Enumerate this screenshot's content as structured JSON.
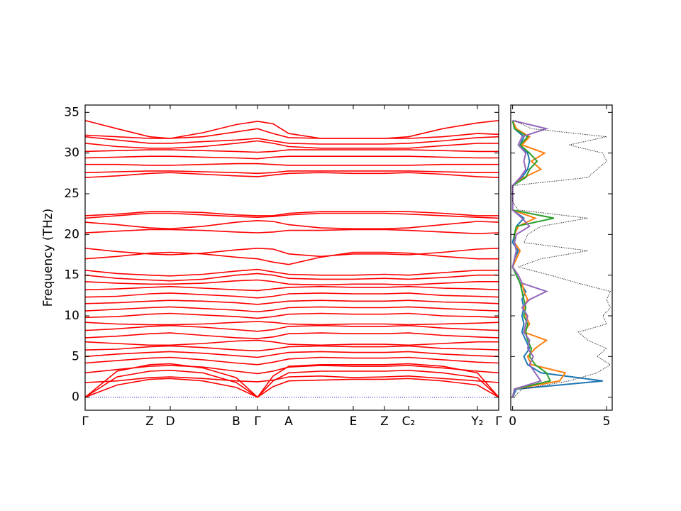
{
  "chart_data": [
    {
      "type": "bands",
      "ylabel": "Frequency (THz)",
      "color": "#ff0000",
      "reference_line": 0,
      "reference_color": "#0000cc",
      "xlim": [
        0,
        583
      ],
      "ylim": [
        -1.6,
        35.9
      ],
      "yticks": [
        0,
        5,
        10,
        15,
        20,
        25,
        30,
        35
      ],
      "xticks": [
        {
          "value": 0,
          "label": "Γ"
        },
        {
          "value": 91,
          "label": "Z"
        },
        {
          "value": 120,
          "label": "D"
        },
        {
          "value": 213,
          "label": "B"
        },
        {
          "value": 243,
          "label": "Γ"
        },
        {
          "value": 287,
          "label": "A"
        },
        {
          "value": 378,
          "label": "E"
        },
        {
          "value": 422,
          "label": "Z"
        },
        {
          "value": 456,
          "label": "C₂"
        },
        {
          "value": 553,
          "label": "Y₂"
        },
        {
          "value": 583,
          "label": "Γ"
        }
      ],
      "x": [
        0,
        45,
        91,
        120,
        166,
        213,
        243,
        265,
        287,
        332,
        378,
        422,
        456,
        504,
        553,
        583
      ],
      "series": [
        {
          "values": [
            0,
            1.5,
            2.2,
            2.3,
            2.0,
            1.2,
            0,
            1.3,
            2.0,
            2.1,
            2.2,
            2.2,
            2.3,
            2.0,
            1.5,
            0
          ]
        },
        {
          "values": [
            0,
            2.5,
            3.2,
            3.3,
            3.0,
            1.8,
            0,
            2.0,
            3.0,
            3.2,
            3.2,
            3.2,
            3.3,
            3.0,
            2.4,
            0
          ]
        },
        {
          "values": [
            0,
            3.2,
            4.0,
            4.1,
            3.6,
            2.4,
            0,
            2.6,
            3.8,
            4.0,
            4.0,
            4.0,
            4.1,
            3.8,
            3.0,
            0
          ]
        },
        {
          "values": [
            1.8,
            2.0,
            2.4,
            2.5,
            2.3,
            2.0,
            1.9,
            2.1,
            2.5,
            2.6,
            2.4,
            2.5,
            2.6,
            2.3,
            2.0,
            1.8
          ]
        },
        {
          "values": [
            3.0,
            3.4,
            3.8,
            3.9,
            3.7,
            3.2,
            2.9,
            3.2,
            3.7,
            3.9,
            3.8,
            3.8,
            3.9,
            3.6,
            3.2,
            3.0
          ]
        },
        {
          "values": [
            4.2,
            4.5,
            4.8,
            4.9,
            4.6,
            4.2,
            4.0,
            4.3,
            4.7,
            4.9,
            4.8,
            4.8,
            4.9,
            4.6,
            4.3,
            4.2
          ]
        },
        {
          "values": [
            5.0,
            5.3,
            5.5,
            5.6,
            5.4,
            5.1,
            4.9,
            5.2,
            5.5,
            5.6,
            5.5,
            5.5,
            5.6,
            5.3,
            5.1,
            5.0
          ]
        },
        {
          "values": [
            5.8,
            5.9,
            6.2,
            6.3,
            6.1,
            5.8,
            5.7,
            5.9,
            6.2,
            6.3,
            6.2,
            6.2,
            6.3,
            6.0,
            5.9,
            5.8
          ]
        },
        {
          "values": [
            6.8,
            6.6,
            6.4,
            6.4,
            6.6,
            6.9,
            7.0,
            6.8,
            6.5,
            6.4,
            6.5,
            6.5,
            6.4,
            6.6,
            6.8,
            6.8
          ]
        },
        {
          "values": [
            7.3,
            7.5,
            7.8,
            7.9,
            7.6,
            7.3,
            7.2,
            7.4,
            7.8,
            7.9,
            7.8,
            7.8,
            7.9,
            7.6,
            7.4,
            7.3
          ]
        },
        {
          "values": [
            8.2,
            8.4,
            8.7,
            8.8,
            8.6,
            8.3,
            8.1,
            8.3,
            8.7,
            8.8,
            8.7,
            8.7,
            8.8,
            8.5,
            8.3,
            8.2
          ]
        },
        {
          "values": [
            9.2,
            9.0,
            8.9,
            8.9,
            9.0,
            9.2,
            9.3,
            9.2,
            9.0,
            8.9,
            9.0,
            9.0,
            8.9,
            9.0,
            9.1,
            9.2
          ]
        },
        {
          "values": [
            9.8,
            9.9,
            10.2,
            10.3,
            10.1,
            9.9,
            9.7,
            9.9,
            10.2,
            10.3,
            10.2,
            10.2,
            10.3,
            10.0,
            9.9,
            9.8
          ]
        },
        {
          "values": [
            10.6,
            10.8,
            11.0,
            11.1,
            10.9,
            10.7,
            10.5,
            10.7,
            11.0,
            11.1,
            11.0,
            11.0,
            11.1,
            10.9,
            10.7,
            10.6
          ]
        },
        {
          "values": [
            11.5,
            11.6,
            11.8,
            11.9,
            11.8,
            11.6,
            11.4,
            11.6,
            11.8,
            11.9,
            11.8,
            11.8,
            11.9,
            11.7,
            11.6,
            11.5
          ]
        },
        {
          "values": [
            12.3,
            12.4,
            12.7,
            12.8,
            12.6,
            12.4,
            12.2,
            12.4,
            12.7,
            12.8,
            12.7,
            12.7,
            12.8,
            12.5,
            12.4,
            12.3
          ]
        },
        {
          "values": [
            13.2,
            13.3,
            13.5,
            13.6,
            13.4,
            13.2,
            13.1,
            13.3,
            13.5,
            13.6,
            13.5,
            13.5,
            13.6,
            13.4,
            13.3,
            13.2
          ]
        },
        {
          "values": [
            14.2,
            14.0,
            13.9,
            13.9,
            14.0,
            14.3,
            14.4,
            14.2,
            13.9,
            13.8,
            13.9,
            13.9,
            13.8,
            14.0,
            14.2,
            14.2
          ]
        },
        {
          "values": [
            15.0,
            14.6,
            14.4,
            14.3,
            14.5,
            15.0,
            15.2,
            15.0,
            14.6,
            14.5,
            14.5,
            14.6,
            14.5,
            14.7,
            15.0,
            15.0
          ]
        },
        {
          "values": [
            15.6,
            15.2,
            15.0,
            14.9,
            15.1,
            15.5,
            15.7,
            15.4,
            15.1,
            15.0,
            15.0,
            15.1,
            15.0,
            15.3,
            15.6,
            15.6
          ]
        },
        {
          "values": [
            17.0,
            17.3,
            17.7,
            17.8,
            17.6,
            17.2,
            17.0,
            16.6,
            16.3,
            17.2,
            17.8,
            17.8,
            17.7,
            17.3,
            17.0,
            17.0
          ]
        },
        {
          "values": [
            18.3,
            17.9,
            17.6,
            17.5,
            17.7,
            18.1,
            18.3,
            18.2,
            17.6,
            17.3,
            17.6,
            17.6,
            17.5,
            17.8,
            18.2,
            18.3
          ]
        },
        {
          "values": [
            20.2,
            20.4,
            20.6,
            20.6,
            20.5,
            20.3,
            20.2,
            20.3,
            20.5,
            20.5,
            20.6,
            20.6,
            20.5,
            20.3,
            20.1,
            20.2
          ]
        },
        {
          "values": [
            21.5,
            21.2,
            20.8,
            20.7,
            21.0,
            21.5,
            21.7,
            21.6,
            21.2,
            20.8,
            20.7,
            20.7,
            20.8,
            21.2,
            21.6,
            21.5
          ]
        },
        {
          "values": [
            22.0,
            22.3,
            22.6,
            22.6,
            22.4,
            22.2,
            22.1,
            22.2,
            22.4,
            22.6,
            22.6,
            22.6,
            22.5,
            22.3,
            22.1,
            22.0
          ]
        },
        {
          "values": [
            22.3,
            22.5,
            22.8,
            22.8,
            22.7,
            22.4,
            22.3,
            22.3,
            22.6,
            22.8,
            22.8,
            22.8,
            22.8,
            22.6,
            22.3,
            22.3
          ]
        },
        {
          "values": [
            27.0,
            27.2,
            27.5,
            27.6,
            27.4,
            27.2,
            27.1,
            27.3,
            27.5,
            27.6,
            27.5,
            27.5,
            27.6,
            27.4,
            27.1,
            27.0
          ]
        },
        {
          "values": [
            27.6,
            27.7,
            27.8,
            27.8,
            27.7,
            27.6,
            27.5,
            27.6,
            27.8,
            27.8,
            27.8,
            27.8,
            27.8,
            27.7,
            27.6,
            27.6
          ]
        },
        {
          "values": [
            28.6,
            28.6,
            28.5,
            28.5,
            28.6,
            28.7,
            28.7,
            28.6,
            28.5,
            28.5,
            28.5,
            28.5,
            28.5,
            28.6,
            28.6,
            28.6
          ]
        },
        {
          "values": [
            29.4,
            29.5,
            29.6,
            29.6,
            29.5,
            29.4,
            29.3,
            29.5,
            29.6,
            29.6,
            29.6,
            29.6,
            29.6,
            29.5,
            29.4,
            29.4
          ]
        },
        {
          "values": [
            30.2,
            30.3,
            30.4,
            30.4,
            30.3,
            30.2,
            30.1,
            30.2,
            30.4,
            30.4,
            30.4,
            30.4,
            30.4,
            30.3,
            30.2,
            30.2
          ]
        },
        {
          "values": [
            31.2,
            30.8,
            30.6,
            30.6,
            30.8,
            31.2,
            31.5,
            31.2,
            30.8,
            30.6,
            30.6,
            30.6,
            30.6,
            30.9,
            31.2,
            31.2
          ]
        },
        {
          "values": [
            32.0,
            31.6,
            31.2,
            31.2,
            31.4,
            31.6,
            31.8,
            31.5,
            31.2,
            31.1,
            31.1,
            31.1,
            31.2,
            31.5,
            31.9,
            32.0
          ]
        },
        {
          "values": [
            32.2,
            32.0,
            31.8,
            31.8,
            32.0,
            32.6,
            33.0,
            32.4,
            31.9,
            31.8,
            31.8,
            31.8,
            31.8,
            32.0,
            32.4,
            32.3
          ]
        },
        {
          "values": [
            34.0,
            33.0,
            32.0,
            31.8,
            32.5,
            33.5,
            33.9,
            33.6,
            32.4,
            31.8,
            31.8,
            31.8,
            32.0,
            33.0,
            33.7,
            34.0
          ]
        }
      ]
    },
    {
      "type": "dos",
      "xlim": [
        -0.1,
        5.3
      ],
      "xticks": [
        0,
        5
      ],
      "ylim": [
        -1.6,
        35.9
      ],
      "yticks": [
        0,
        5,
        10,
        15,
        20,
        25,
        30,
        35
      ],
      "frequencies": [
        0,
        1,
        2,
        3,
        4,
        5,
        6,
        7,
        8,
        9,
        10,
        11,
        12,
        13,
        14,
        15,
        16,
        17,
        18,
        19,
        20,
        21,
        22,
        23,
        24,
        25,
        26,
        27,
        28,
        29,
        30,
        31,
        32,
        33,
        34
      ],
      "total": {
        "color": "#000000",
        "values": [
          0.05,
          0.5,
          3.0,
          4.5,
          5.2,
          4.5,
          5.0,
          4.0,
          3.5,
          5.0,
          4.8,
          5.2,
          5.0,
          5.2,
          3.5,
          2.0,
          0.3,
          1.5,
          4.0,
          0.6,
          0.8,
          1.5,
          4.0,
          0.3,
          0,
          0,
          0,
          4.0,
          4.5,
          5.0,
          4.8,
          3.0,
          5.0,
          1.0,
          0.1
        ]
      },
      "series": [
        {
          "color": "#1f77b4",
          "values": [
            0,
            0.2,
            4.8,
            1.5,
            0.8,
            0.6,
            0.9,
            0.7,
            0.5,
            0.6,
            0.5,
            0.6,
            0.5,
            0.7,
            0.4,
            0.2,
            0,
            0.1,
            0.3,
            0,
            0.1,
            0.2,
            0.6,
            0,
            0,
            0,
            0,
            0.5,
            0.8,
            0.9,
            0.8,
            0.4,
            0.6,
            0.1,
            0
          ]
        },
        {
          "color": "#ff7f0e",
          "values": [
            0,
            0.1,
            2.5,
            2.8,
            1.0,
            0.8,
            1.2,
            1.8,
            0.6,
            0.9,
            0.7,
            0.6,
            0.8,
            0.6,
            0.5,
            0.3,
            0,
            0.2,
            0.4,
            0.1,
            0.1,
            0.3,
            1.2,
            0,
            0,
            0,
            0,
            0.6,
            1.5,
            1.0,
            1.7,
            0.5,
            0.9,
            0.2,
            0
          ]
        },
        {
          "color": "#2ca02c",
          "values": [
            0,
            0.1,
            2.0,
            1.8,
            1.2,
            0.9,
            1.0,
            0.8,
            0.7,
            0.8,
            0.6,
            0.7,
            0.6,
            0.5,
            0.4,
            0.2,
            0,
            0.1,
            0.2,
            0.1,
            0.1,
            0.2,
            2.2,
            0,
            0,
            0,
            0,
            0.7,
            0.9,
            1.3,
            0.9,
            0.4,
            0.8,
            0.1,
            0
          ]
        },
        {
          "color": "#9467bd",
          "values": [
            0,
            0.1,
            1.5,
            1.2,
            0.9,
            1.1,
            0.8,
            0.9,
            0.6,
            0.7,
            0.8,
            0.5,
            0.9,
            1.8,
            0.5,
            0.3,
            0,
            0.1,
            0.2,
            0.1,
            0.2,
            0.9,
            0.5,
            0,
            0,
            0,
            0,
            0.4,
            0.7,
            0.6,
            0.7,
            0.3,
            0.5,
            1.8,
            0
          ]
        }
      ]
    }
  ]
}
